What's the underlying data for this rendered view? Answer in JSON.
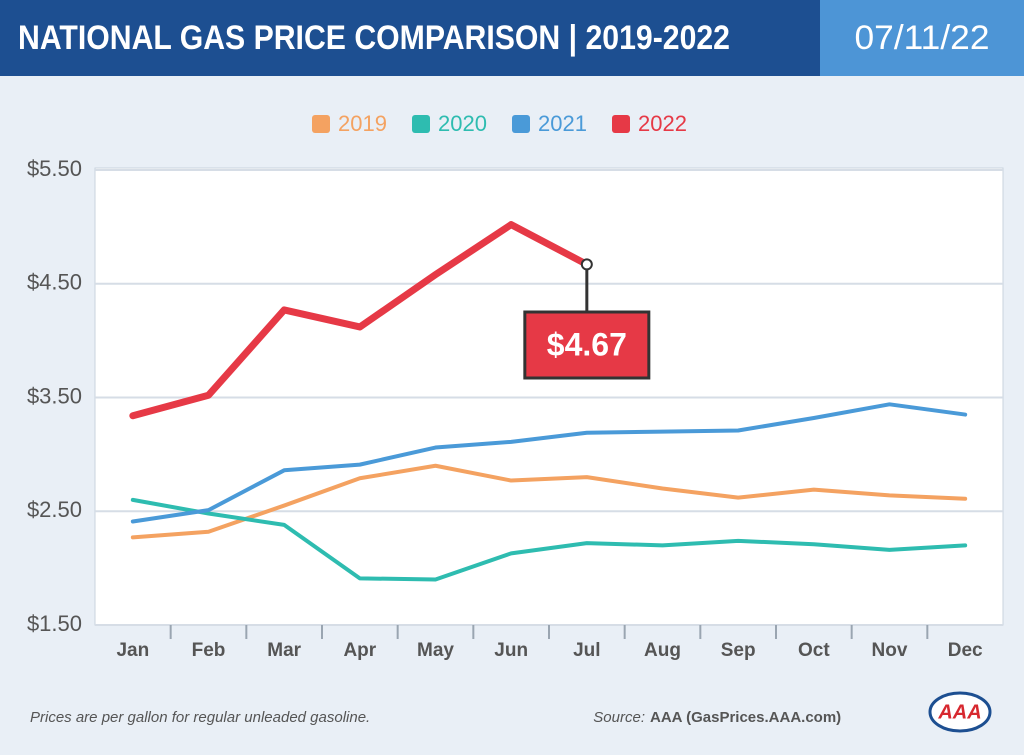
{
  "chart_data": {
    "type": "line",
    "title": "NATIONAL GAS PRICE COMPARISON | 2019-2022",
    "date": "07/11/22",
    "categories": [
      "Jan",
      "Feb",
      "Mar",
      "Apr",
      "May",
      "Jun",
      "Jul",
      "Aug",
      "Sep",
      "Oct",
      "Nov",
      "Dec"
    ],
    "series": [
      {
        "name": "2019",
        "color": "#f4a261",
        "values": [
          2.27,
          2.32,
          2.55,
          2.79,
          2.9,
          2.77,
          2.8,
          2.7,
          2.62,
          2.69,
          2.64,
          2.61
        ]
      },
      {
        "name": "2020",
        "color": "#2ebcb0",
        "values": [
          2.6,
          2.48,
          2.38,
          1.91,
          1.9,
          2.13,
          2.22,
          2.2,
          2.24,
          2.21,
          2.16,
          2.2
        ]
      },
      {
        "name": "2021",
        "color": "#4a9ad8",
        "values": [
          2.41,
          2.51,
          2.86,
          2.91,
          3.06,
          3.11,
          3.19,
          3.2,
          3.21,
          3.32,
          3.44,
          3.35
        ]
      },
      {
        "name": "2022",
        "color": "#e63946",
        "values": [
          3.34,
          3.52,
          4.27,
          4.12,
          4.58,
          5.02,
          4.67,
          null,
          null,
          null,
          null,
          null
        ]
      }
    ],
    "ylim": [
      1.5,
      5.5
    ],
    "yticks": [
      {
        "value": 1.5,
        "label": "$1.50"
      },
      {
        "value": 2.5,
        "label": "$2.50"
      },
      {
        "value": 3.5,
        "label": "$3.50"
      },
      {
        "value": 4.5,
        "label": "$4.50"
      },
      {
        "value": 5.5,
        "label": "$5.50"
      }
    ],
    "grid": true,
    "annotation": {
      "value": 4.67,
      "label": "$4.67"
    },
    "note": "Prices are per gallon for regular unleaded gasoline.",
    "source_label": "Source:",
    "source": "AAA (GasPrices.AAA.com)",
    "logo": "AAA"
  }
}
